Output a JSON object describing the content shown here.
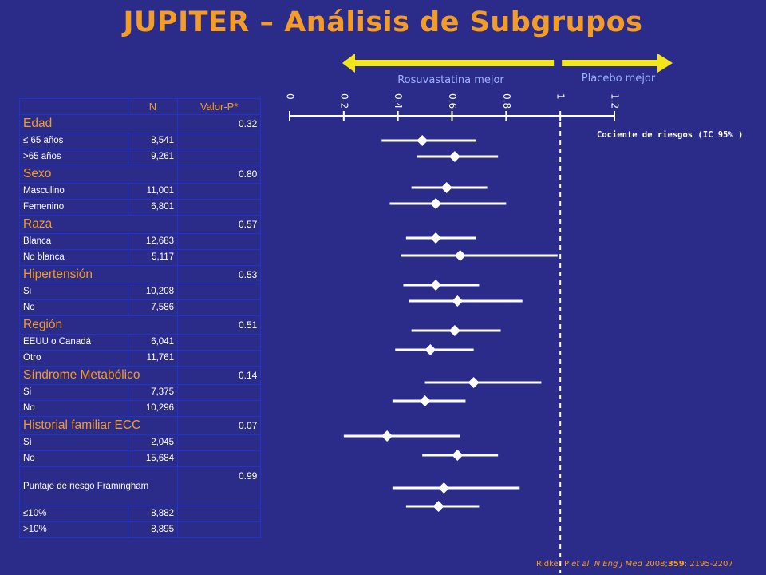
{
  "title": "JUPITER – Análisis de Subgrupos",
  "table": {
    "header": {
      "n": "N",
      "p": "Valor-P*"
    },
    "rows": [
      {
        "label": "Edad",
        "p": "0.32",
        "kind": "cat"
      },
      {
        "label": "≤ 65 años",
        "n": "8,541",
        "kind": "sub"
      },
      {
        "label": ">65 años",
        "n": "9,261",
        "kind": "sub"
      },
      {
        "label": "Sexo",
        "p": "0.80",
        "kind": "cat"
      },
      {
        "label": "Masculino",
        "n": "11,001",
        "kind": "sub"
      },
      {
        "label": "Femenino",
        "n": "6,801",
        "kind": "sub"
      },
      {
        "label": "Raza",
        "p": "0.57",
        "kind": "cat"
      },
      {
        "label": "Blanca",
        "n": "12,683",
        "kind": "sub"
      },
      {
        "label": "No blanca",
        "n": "5,117",
        "kind": "sub"
      },
      {
        "label": "Hipertensión",
        "p": "0.53",
        "kind": "cat"
      },
      {
        "label": "Si",
        "n": "10,208",
        "kind": "sub"
      },
      {
        "label": "No",
        "n": "7,586",
        "kind": "sub"
      },
      {
        "label": "Región",
        "p": "0.51",
        "kind": "cat"
      },
      {
        "label": "EEUU o Canadá",
        "n": "6,041",
        "kind": "sub"
      },
      {
        "label": "Otro",
        "n": "11,761",
        "kind": "sub"
      },
      {
        "label": "Síndrome Metabólico",
        "p": "0.14",
        "kind": "cat"
      },
      {
        "label": "Si",
        "n": "7,375",
        "kind": "sub"
      },
      {
        "label": "No",
        "n": "10,296",
        "kind": "sub"
      },
      {
        "label": "Historial familiar  ECC",
        "p": "0.07",
        "kind": "cat"
      },
      {
        "label": "Sì",
        "n": "2,045",
        "kind": "sub"
      },
      {
        "label": "No",
        "n": "15,684",
        "kind": "sub"
      },
      {
        "label": "Puntaje de riesgo Framingham",
        "p": "0.99",
        "kind": "tall"
      },
      {
        "label": "≤10%",
        "n": "8,882",
        "kind": "sub"
      },
      {
        "label": ">10%",
        "n": "8,895",
        "kind": "sub"
      }
    ]
  },
  "chart_data": {
    "type": "forest",
    "axis_label": "Cociente de riesgos (IC 95% )",
    "xlim": [
      0,
      1.2
    ],
    "ticks": [
      0,
      0.2,
      0.4,
      0.6,
      0.8,
      1,
      1.2
    ],
    "tick_labels": [
      "0",
      "0.2",
      "0.4",
      "0.6",
      "0.8",
      "1",
      "1.2"
    ],
    "reference_line": 1,
    "left_arrow_label": "Rosuvastatina mejor",
    "right_arrow_label": "Placebo mejor",
    "points": [
      {
        "label": "≤ 65 años",
        "hr": 0.49,
        "lo": 0.34,
        "hi": 0.69
      },
      {
        "label": ">65 años",
        "hr": 0.61,
        "lo": 0.47,
        "hi": 0.77
      },
      {
        "label": "Masculino",
        "hr": 0.58,
        "lo": 0.45,
        "hi": 0.73
      },
      {
        "label": "Femenino",
        "hr": 0.54,
        "lo": 0.37,
        "hi": 0.8
      },
      {
        "label": "Blanca",
        "hr": 0.54,
        "lo": 0.43,
        "hi": 0.69
      },
      {
        "label": "No blanca",
        "hr": 0.63,
        "lo": 0.41,
        "hi": 0.99
      },
      {
        "label": "Si (Hipertensión)",
        "hr": 0.54,
        "lo": 0.42,
        "hi": 0.7
      },
      {
        "label": "No (Hipertensión)",
        "hr": 0.62,
        "lo": 0.44,
        "hi": 0.86
      },
      {
        "label": "EEUU o Canadá",
        "hr": 0.61,
        "lo": 0.45,
        "hi": 0.78
      },
      {
        "label": "Otro",
        "hr": 0.52,
        "lo": 0.39,
        "hi": 0.68
      },
      {
        "label": "Si (Síndrome Metabólico)",
        "hr": 0.68,
        "lo": 0.5,
        "hi": 0.93
      },
      {
        "label": "No (Síndrome Metabólico)",
        "hr": 0.5,
        "lo": 0.38,
        "hi": 0.65
      },
      {
        "label": "Sì (Historial familiar)",
        "hr": 0.36,
        "lo": 0.2,
        "hi": 0.63
      },
      {
        "label": "No (Historial familiar)",
        "hr": 0.62,
        "lo": 0.49,
        "hi": 0.77
      },
      {
        "label": "≤10%",
        "hr": 0.57,
        "lo": 0.38,
        "hi": 0.85
      },
      {
        "label": ">10%",
        "hr": 0.55,
        "lo": 0.43,
        "hi": 0.7
      }
    ]
  },
  "citation": {
    "author": "Ridker P",
    "etal": "et al.",
    "journal": "N Eng J Med",
    "year": "2008;",
    "volume": "359",
    "pages": ": 2195-2207"
  },
  "colors": {
    "background": "#2b2b8a",
    "accent": "#f39c26",
    "arrow": "#f2e61a",
    "marks": "#ffffff"
  }
}
